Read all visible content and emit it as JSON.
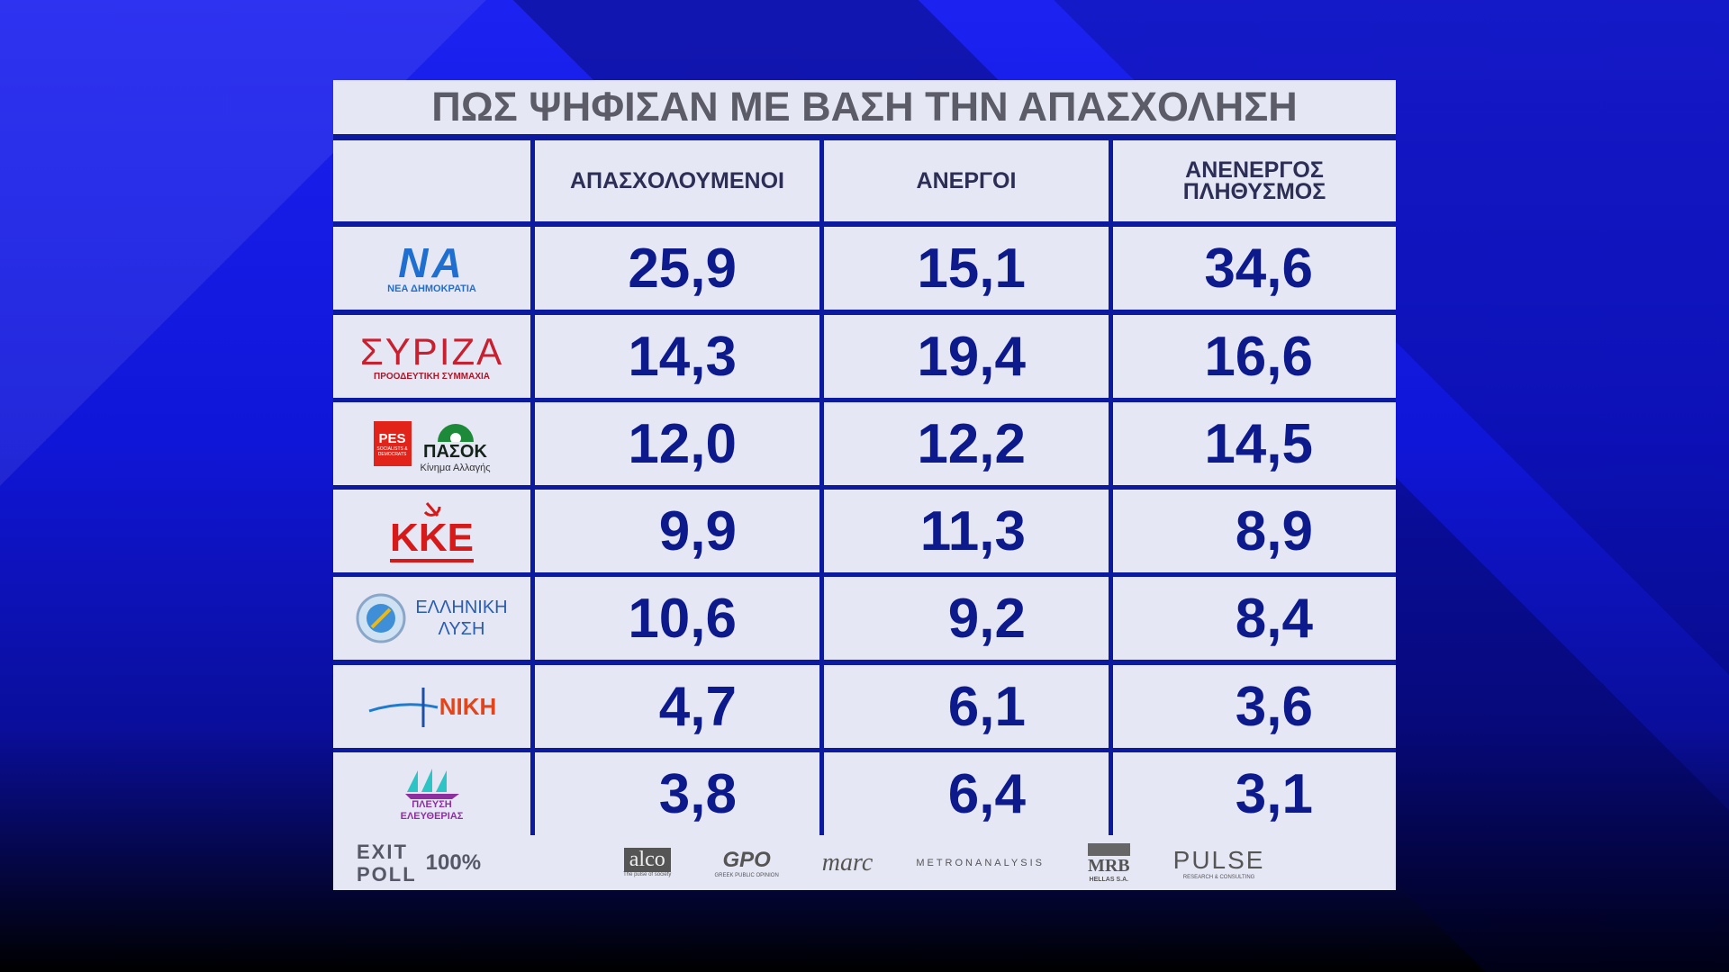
{
  "header": {
    "title": "ΠΩΣ ΨΗΦΙΣΑΝ ΜΕ ΒΑΣΗ ΤΗΝ ΑΠΑΣΧΟΛΗΣΗ"
  },
  "table": {
    "columns": [
      "ΑΠΑΣΧΟΛΟΥΜΕΝΟΙ",
      "ΑΝΕΡΓΟΙ",
      "ΑΝΕΝΕΡΓΟΣ ΠΛΗΘΥΣΜΟΣ"
    ],
    "rows": [
      {
        "logo": [
          "ΝΑ",
          "ΝΕΑ ΔΗΜΟΚΡΑΤΙΑ"
        ],
        "values": [
          "25,9",
          "15,1",
          "34,6"
        ]
      },
      {
        "logo": [
          "ΣΥΡΙΖΑ",
          "ΠΡΟΟΔΕΥΤΙΚΗ ΣΥΜΜΑΧΙΑ"
        ],
        "values": [
          "14,3",
          "19,4",
          "16,6"
        ]
      },
      {
        "logo": [
          "PES",
          "SOCIALISTS & DEMOCRATS",
          "ΠΑΣΟΚ",
          "Κίνημα Αλλαγής"
        ],
        "values": [
          "12,0",
          "12,2",
          "14,5"
        ]
      },
      {
        "logo": [
          "ΚΚΕ"
        ],
        "values": [
          "9,9",
          "11,3",
          "8,9"
        ]
      },
      {
        "logo": [
          "ΕΛΛΗΝΙΚΗ",
          "ΛΥΣΗ"
        ],
        "values": [
          "10,6",
          "9,2",
          "8,4"
        ]
      },
      {
        "logo": [
          "ΝΙΚΗ"
        ],
        "values": [
          "4,7",
          "6,1",
          "3,6"
        ]
      },
      {
        "logo": [
          "ΠΛΕΥΣΗ",
          "ΕΛΕΥΘΕΡΙΑΣ"
        ],
        "values": [
          "3,8",
          "6,4",
          "3,1"
        ]
      }
    ]
  },
  "footer": {
    "label": [
      "EXIT",
      "POLL"
    ],
    "coverage": "100%",
    "pollsters": [
      [
        "alco",
        "The pulse of society"
      ],
      [
        "GPO",
        "GREEK PUBLIC OPINION"
      ],
      [
        "marc"
      ],
      [
        "METRONANALYSIS"
      ],
      [
        "MRB",
        "HELLAS S.A."
      ],
      [
        "PULSE",
        "RESEARCH & CONSULTING"
      ]
    ]
  }
}
